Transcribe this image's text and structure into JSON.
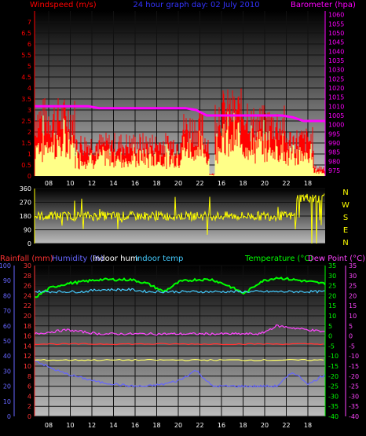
{
  "colors": {
    "windspeed": "#ff0000",
    "windgust": "#ffff88",
    "barometer": "#ff00ff",
    "winddir": "#ffff00",
    "rainfall": "#ff3333",
    "humidity": "#6666ff",
    "indoor_hum": "#ffff66",
    "indoor_temp": "#44ccff",
    "temperature": "#00ff00",
    "dewpoint": "#ff44ff",
    "grid": "#111111",
    "tick_text": "#ffffff"
  },
  "chart_data": [
    {
      "type": "area",
      "title": "24 hour graph day:  02 July 2010",
      "ylabel_left": "Windspeed (m/s)",
      "ylabel_right": "Barometer (hpa)",
      "x_ticks": [
        "08",
        "10",
        "12",
        "14",
        "16",
        "18",
        "20",
        "22",
        "16",
        "18",
        "20",
        "22",
        "18"
      ],
      "y_left_ticks": [
        "0",
        "0.5",
        "1",
        "1.5",
        "2",
        "2.5",
        "3",
        "3.5",
        "4",
        "4.5",
        "5",
        "5.5",
        "6",
        "6.5",
        "7"
      ],
      "y_right_ticks": [
        "975",
        "980",
        "985",
        "990",
        "995",
        "1000",
        "1005",
        "1010",
        "1015",
        "1020",
        "1025",
        "1030",
        "1035",
        "1040",
        "1045",
        "1050",
        "1055",
        "1060"
      ],
      "ylim_left": [
        0,
        7.5
      ],
      "ylim_right": [
        972,
        1062
      ],
      "grid": true,
      "series": [
        {
          "name": "Windspeed",
          "segments": [
            [
              0,
              2.9
            ],
            [
              0.14,
              1.6
            ],
            [
              0.5,
              2.4
            ],
            [
              0.58,
              1.8
            ],
            [
              0.6,
              0.1
            ],
            [
              0.62,
              3.2
            ],
            [
              0.74,
              2.6
            ],
            [
              0.86,
              1.8
            ],
            [
              0.96,
              0.4
            ],
            [
              1.0,
              0.2
            ]
          ]
        },
        {
          "name": "Barometer",
          "values": [
            1010,
            1010,
            1010,
            1010,
            1010,
            1010,
            1009,
            1009,
            1009,
            1009,
            1009,
            1009,
            1009,
            1009,
            1009,
            1008,
            1005,
            1005,
            1005,
            1005,
            1005,
            1005,
            1005,
            1005,
            1004,
            1002,
            1002,
            1002
          ]
        }
      ]
    },
    {
      "type": "line",
      "ylabel_right": "N W S E N",
      "y_ticks": [
        "0",
        "90",
        "180",
        "270",
        "360"
      ],
      "ylim": [
        0,
        360
      ],
      "dir_labels": [
        "N",
        "W",
        "S",
        "E",
        "N"
      ],
      "series": [
        {
          "name": "Wind direction",
          "level": 180,
          "late_level": 300
        }
      ]
    },
    {
      "type": "line",
      "legend": [
        "Rainfall (mm)",
        "Humidity (%)",
        "Indoor hum",
        "Indoor temp",
        "Temperature (°C)",
        "Dew Point (°C)"
      ],
      "y_left1_ticks": [
        "0",
        "10",
        "20",
        "30",
        "40",
        "50",
        "60",
        "70",
        "80",
        "90",
        "100"
      ],
      "y_left2_ticks": [
        "0",
        "2",
        "4",
        "6",
        "8",
        "10",
        "12",
        "14",
        "16",
        "18",
        "20",
        "22",
        "24",
        "26",
        "28",
        "30"
      ],
      "y_right1_ticks": [
        "-40",
        "-35",
        "-30",
        "-25",
        "-20",
        "-15",
        "-10",
        "-5",
        "0",
        "5",
        "10",
        "15",
        "20",
        "25",
        "30",
        "35"
      ],
      "y_right2_ticks": [
        "-40",
        "-35",
        "-30",
        "-25",
        "-20",
        "-15",
        "-10",
        "-5",
        "0",
        "5",
        "10",
        "15",
        "20",
        "25",
        "30",
        "35"
      ],
      "ylim_temp": [
        -40,
        35
      ],
      "x_ticks": [
        "08",
        "10",
        "12",
        "14",
        "16",
        "18",
        "20",
        "22",
        "16",
        "18",
        "20",
        "22",
        "18"
      ],
      "grid": true,
      "series": [
        {
          "name": "Temperature",
          "values": [
            19,
            24,
            26,
            27,
            28,
            28,
            28,
            26,
            22,
            27,
            28,
            28,
            25,
            21,
            27,
            29,
            28,
            27,
            26
          ]
        },
        {
          "name": "Indoor temp",
          "values": [
            22,
            22,
            22,
            22,
            23,
            23,
            23,
            22,
            22,
            22,
            22,
            22,
            22,
            22,
            22,
            22,
            22,
            22,
            22
          ]
        },
        {
          "name": "Dew Point",
          "values": [
            1,
            2,
            3,
            2,
            1,
            1,
            1,
            1,
            1,
            1,
            1,
            1,
            1,
            1,
            1,
            5,
            4,
            3,
            2
          ]
        },
        {
          "name": "Indoor hum",
          "level": -12
        },
        {
          "name": "Humidity",
          "values": [
            -12,
            -16,
            -19,
            -21,
            -23,
            -24,
            -25,
            -25,
            -24,
            -22,
            -17,
            -25,
            -25,
            -25,
            -25,
            -25,
            -18,
            -24,
            -19
          ]
        },
        {
          "name": "Rainfall",
          "level": -4
        }
      ]
    }
  ]
}
